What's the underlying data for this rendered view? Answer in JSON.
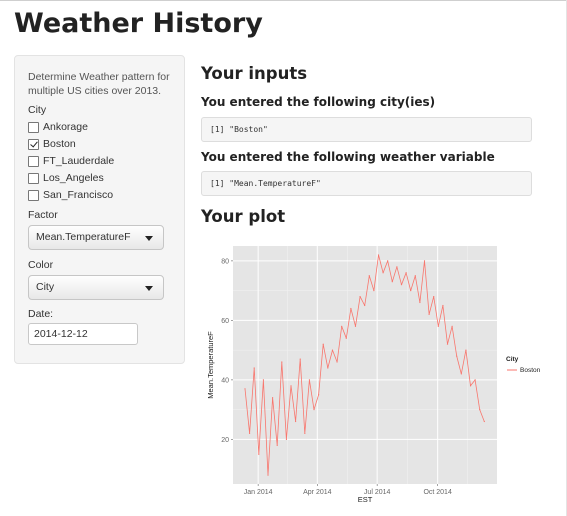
{
  "app": {
    "title": "Weather History"
  },
  "sidebar": {
    "help_text": "Determine Weather pattern for multiple US cities over 2013.",
    "city_label": "City",
    "cities": [
      {
        "label": "Ankorage",
        "checked": false
      },
      {
        "label": "Boston",
        "checked": true
      },
      {
        "label": "FT_Lauderdale",
        "checked": false
      },
      {
        "label": "Los_Angeles",
        "checked": false
      },
      {
        "label": "San_Francisco",
        "checked": false
      }
    ],
    "factor_label": "Factor",
    "factor_value": "Mean.TemperatureF",
    "color_label": "Color",
    "color_value": "City",
    "date_label": "Date:",
    "date_value": "2014-12-12"
  },
  "main": {
    "inputs_heading": "Your inputs",
    "city_heading": "You entered the following city(ies)",
    "city_output": "[1] \"Boston\"",
    "variable_heading": "You entered the following weather variable",
    "variable_output": "[1] \"Mean.TemperatureF\"",
    "plot_heading": "Your plot"
  },
  "chart_data": {
    "type": "line",
    "xlabel": "EST",
    "ylabel": "Mean.TemperatureF",
    "x_range": [
      "2013-12-12",
      "2014-12-12"
    ],
    "ylim": [
      5,
      85
    ],
    "x_ticks": [
      {
        "date": "2014-01-01",
        "label": "Jan 2014"
      },
      {
        "date": "2014-04-01",
        "label": "Apr 2014"
      },
      {
        "date": "2014-07-01",
        "label": "Jul 2014"
      },
      {
        "date": "2014-10-01",
        "label": "Oct 2014"
      }
    ],
    "y_ticks": [
      20,
      40,
      60,
      80
    ],
    "grid": true,
    "legend": {
      "title": "City",
      "placement": "right"
    },
    "series": [
      {
        "name": "Boston",
        "color": "#f8766d",
        "x": [
          "2013-12-12",
          "2013-12-19",
          "2013-12-26",
          "2014-01-02",
          "2014-01-09",
          "2014-01-16",
          "2014-01-23",
          "2014-01-30",
          "2014-02-06",
          "2014-02-13",
          "2014-02-20",
          "2014-02-27",
          "2014-03-06",
          "2014-03-13",
          "2014-03-20",
          "2014-03-27",
          "2014-04-03",
          "2014-04-10",
          "2014-04-17",
          "2014-04-24",
          "2014-05-01",
          "2014-05-08",
          "2014-05-15",
          "2014-05-22",
          "2014-05-29",
          "2014-06-05",
          "2014-06-12",
          "2014-06-19",
          "2014-06-26",
          "2014-07-03",
          "2014-07-10",
          "2014-07-17",
          "2014-07-24",
          "2014-07-31",
          "2014-08-07",
          "2014-08-14",
          "2014-08-21",
          "2014-08-28",
          "2014-09-04",
          "2014-09-11",
          "2014-09-18",
          "2014-09-25",
          "2014-10-02",
          "2014-10-09",
          "2014-10-16",
          "2014-10-23",
          "2014-10-30",
          "2014-11-06",
          "2014-11-13",
          "2014-11-20",
          "2014-11-27",
          "2014-12-04",
          "2014-12-11"
        ],
        "y": [
          37,
          22,
          44,
          15,
          40,
          8,
          34,
          18,
          46,
          20,
          38,
          26,
          47,
          22,
          40,
          30,
          35,
          52,
          44,
          50,
          46,
          58,
          54,
          64,
          58,
          68,
          65,
          75,
          70,
          82,
          76,
          80,
          73,
          78,
          72,
          76,
          70,
          75,
          66,
          80,
          62,
          68,
          58,
          65,
          52,
          58,
          48,
          42,
          50,
          38,
          40,
          30,
          26
        ]
      }
    ]
  }
}
